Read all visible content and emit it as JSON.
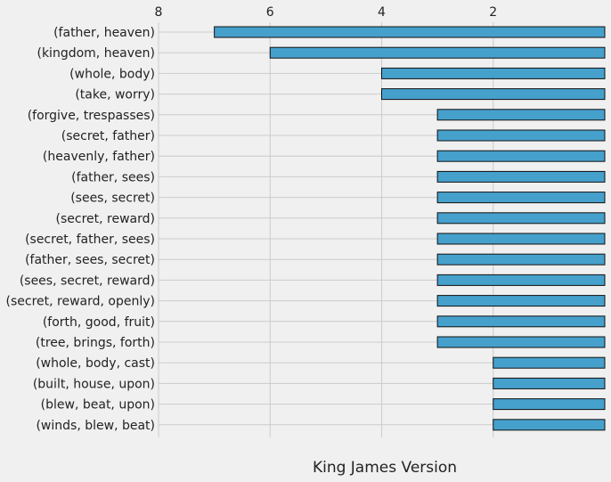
{
  "chart_data": {
    "type": "bar",
    "orientation": "horizontal",
    "x_axis_inverted": true,
    "x_ticks_position": "top",
    "xlabel": "King James Version",
    "xlim": [
      8,
      0
    ],
    "xticks": [
      8,
      6,
      4,
      2
    ],
    "grid": true,
    "categories": [
      "(father, heaven)",
      "(kingdom, heaven)",
      "(whole, body)",
      "(take, worry)",
      "(forgive, trespasses)",
      "(secret, father)",
      "(heavenly, father)",
      "(father, sees)",
      "(sees, secret)",
      "(secret, reward)",
      "(secret, father, sees)",
      "(father, sees, secret)",
      "(sees, secret, reward)",
      "(secret, reward, openly)",
      "(forth, good, fruit)",
      "(tree, brings, forth)",
      "(whole, body, cast)",
      "(built, house, upon)",
      "(blew, beat, upon)",
      "(winds, blew, beat)"
    ],
    "values": [
      7,
      6,
      4,
      4,
      3,
      3,
      3,
      3,
      3,
      3,
      3,
      3,
      3,
      3,
      3,
      3,
      2,
      2,
      2,
      2
    ],
    "colors": {
      "bar": "#46a0cc",
      "bar_edge": "#111111",
      "background": "#f0f0f0",
      "grid": "#cbcbcb",
      "text": "#222222"
    }
  }
}
